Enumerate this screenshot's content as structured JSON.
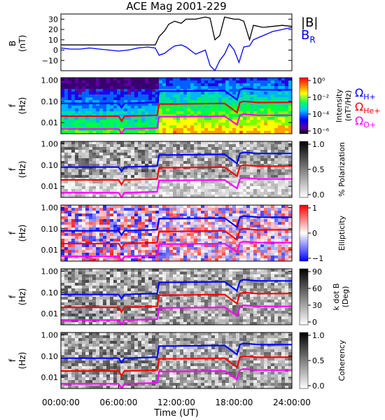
{
  "chart_data": [
    {
      "type": "line",
      "title": "ACE Mag 2001-229",
      "ylabel": "B (nT)",
      "ylim": [
        -20,
        35
      ],
      "yticks": [
        -10,
        0,
        10,
        20,
        30
      ],
      "series": [
        {
          "name": "|B|",
          "color": "#000000",
          "x": [
            0,
            1,
            2,
            3,
            4,
            5,
            6,
            7,
            8,
            9,
            9.8,
            10.2,
            10.8,
            11.2,
            11.8,
            12.5,
            13,
            14,
            15,
            15.5,
            16,
            16.5,
            17,
            17.5,
            18,
            18.5,
            19,
            19.6,
            20,
            21,
            22,
            23,
            24
          ],
          "values": [
            5,
            5,
            5,
            5,
            5,
            5,
            5,
            5,
            5,
            5,
            5,
            13,
            19,
            25,
            28,
            26,
            30,
            30,
            32,
            31,
            10,
            14,
            32,
            31,
            30,
            30,
            28,
            10,
            24,
            22,
            23,
            24,
            23
          ]
        },
        {
          "name": "B_R",
          "color": "#0000ff",
          "x": [
            0,
            1,
            2,
            3,
            4,
            5,
            6,
            7,
            8,
            9,
            9.8,
            10.2,
            10.8,
            11.2,
            11.8,
            12.5,
            13,
            14,
            15,
            15.5,
            16,
            16.5,
            17,
            17.5,
            18,
            18.5,
            19,
            19.6,
            20,
            21,
            22,
            23,
            24
          ],
          "values": [
            2,
            1,
            1,
            2,
            1,
            0,
            -1,
            0,
            2,
            3,
            2,
            -5,
            -3,
            0,
            4,
            5,
            3,
            -4,
            0,
            -15,
            -20,
            -10,
            -4,
            6,
            0,
            -12,
            3,
            4,
            10,
            14,
            18,
            20,
            22
          ]
        }
      ],
      "legend": [
        "|B|",
        "B_R"
      ]
    },
    {
      "type": "heatmap",
      "ylabel": "f (Hz)",
      "yticks": [
        "1.00",
        "0.10",
        "0.01"
      ],
      "colorbar": {
        "label": "Intensity (nT²/Hz)",
        "ticks": [
          "10⁰",
          "10⁻²",
          "10⁻⁴",
          "10⁻⁶"
        ],
        "colormap": "rainbow"
      },
      "overlays": [
        {
          "name": "ΩH+",
          "color": "#0000ff",
          "x": [
            0,
            6,
            6.3,
            6.6,
            10,
            10.2,
            12,
            17,
            18.3,
            18.6,
            19,
            20.5,
            24
          ],
          "values": [
            0.08,
            0.08,
            0.05,
            0.08,
            0.09,
            0.3,
            0.3,
            0.32,
            0.12,
            0.35,
            0.4,
            0.35,
            0.35
          ]
        },
        {
          "name": "ΩHe+",
          "color": "#ff0000",
          "x": [
            0,
            6,
            6.3,
            6.6,
            10,
            10.2,
            12,
            17,
            18.3,
            18.6,
            19,
            20.5,
            24
          ],
          "values": [
            0.02,
            0.02,
            0.012,
            0.02,
            0.022,
            0.075,
            0.075,
            0.08,
            0.03,
            0.09,
            0.1,
            0.088,
            0.09
          ]
        },
        {
          "name": "ΩO+",
          "color": "#ff00ff",
          "x": [
            0,
            6,
            6.3,
            6.6,
            10,
            10.2,
            12,
            17,
            18.3,
            18.6,
            19,
            20.5,
            24
          ],
          "values": [
            0.005,
            0.005,
            0.003,
            0.005,
            0.0055,
            0.019,
            0.019,
            0.02,
            0.008,
            0.022,
            0.025,
            0.022,
            0.022
          ]
        }
      ]
    },
    {
      "type": "heatmap",
      "ylabel": "f (Hz)",
      "yticks": [
        "1.00",
        "0.10",
        "0.01"
      ],
      "colorbar": {
        "label": "% Polarization",
        "ticks": [
          "1.0",
          "0.5",
          "0.0"
        ],
        "colormap": "grayscale"
      }
    },
    {
      "type": "heatmap",
      "ylabel": "f (Hz)",
      "yticks": [
        "1.00",
        "0.10",
        "0.01"
      ],
      "colorbar": {
        "label": "Ellipticity",
        "ticks": [
          "1",
          "0",
          "−1"
        ],
        "colormap": "blue-white-red"
      }
    },
    {
      "type": "heatmap",
      "ylabel": "f (Hz)",
      "yticks": [
        "1.00",
        "0.10",
        "0.01"
      ],
      "colorbar": {
        "label": "k dot B (Deg)",
        "ticks": [
          "90",
          "60",
          "30",
          "0"
        ],
        "colormap": "grayscale"
      }
    },
    {
      "type": "heatmap",
      "ylabel": "f (Hz)",
      "yticks": [
        "1.00",
        "0.10",
        "0.01"
      ],
      "colorbar": {
        "label": "Coherency",
        "ticks": [
          "1.0",
          "0.5",
          "0.0"
        ],
        "colormap": "grayscale"
      },
      "xlabel": "Time (UT)",
      "xticks": [
        "00:00:00",
        "06:00:00",
        "12:00:00",
        "18:00:00",
        "24:00:00"
      ],
      "xlim": [
        0,
        24
      ]
    }
  ],
  "legend_labels": {
    "B": "|B|",
    "BR_main": "B",
    "BR_sub": "R",
    "omega": "Ω",
    "H_sub": "H+",
    "He_sub": "He+",
    "O_sub": "O+"
  },
  "labels": {
    "title": "ACE Mag 2001-229",
    "B_ylabel_1": "B",
    "B_ylabel_2": "(nT)",
    "f_label": "f",
    "hz_label": "(Hz)",
    "xlabel": "Time (UT)",
    "intensity_1": "Intensity",
    "intensity_2": "(nT²/Hz)",
    "polarization": "% Polarization",
    "ellipticity": "Ellipticity",
    "kdotb_1": "k dot B",
    "kdotb_2": "(Deg)",
    "coherency": "Coherency"
  }
}
